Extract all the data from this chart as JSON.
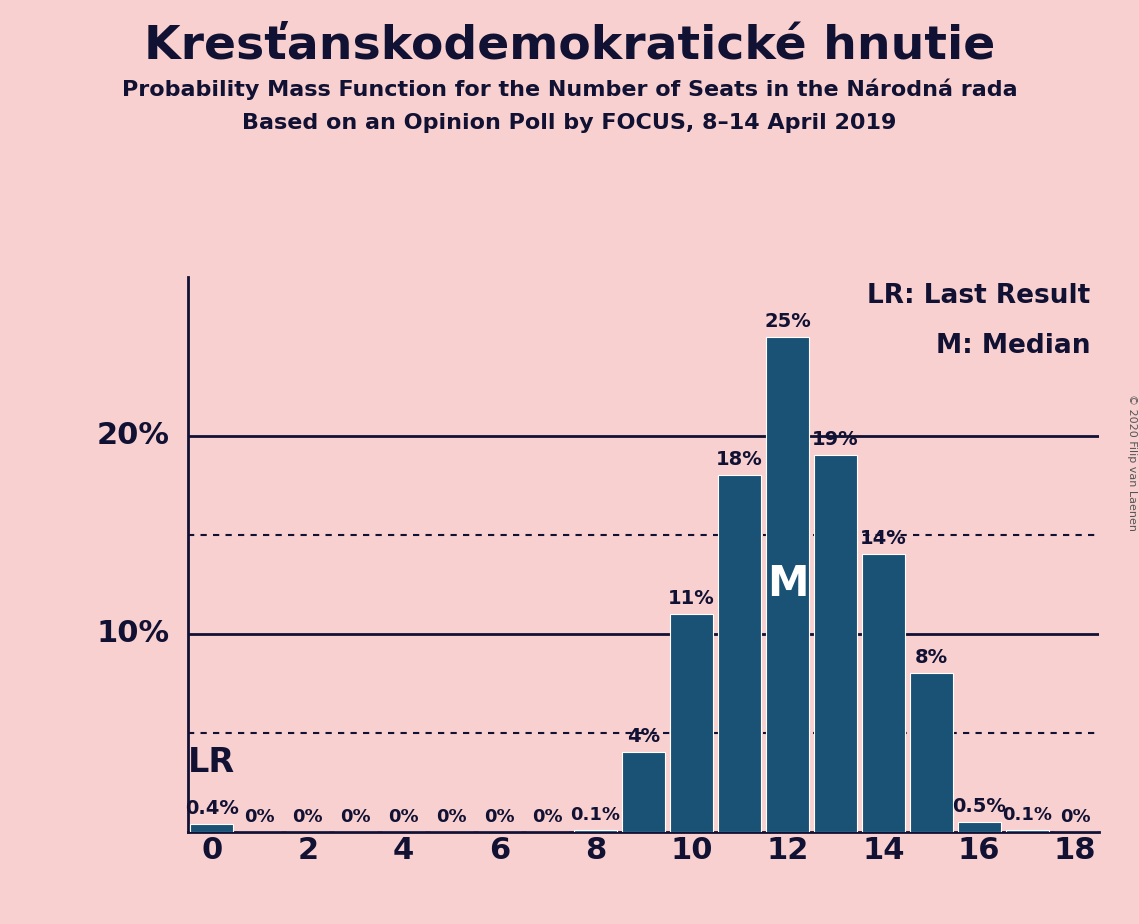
{
  "title": "Kresťanskodemokratické hnutie",
  "subtitle1": "Probability Mass Function for the Number of Seats in the Národná rada",
  "subtitle2": "Based on an Opinion Poll by FOCUS, 8–14 April 2019",
  "copyright": "© 2020 Filip van Laenen",
  "seats": [
    0,
    1,
    2,
    3,
    4,
    5,
    6,
    7,
    8,
    9,
    10,
    11,
    12,
    13,
    14,
    15,
    16,
    17,
    18
  ],
  "probabilities": [
    0.004,
    0.0,
    0.0,
    0.0,
    0.0,
    0.0,
    0.0,
    0.0,
    0.001,
    0.04,
    0.11,
    0.18,
    0.25,
    0.19,
    0.14,
    0.08,
    0.005,
    0.001,
    0.0
  ],
  "bar_color": "#1a5276",
  "background_color": "#f9d0d0",
  "text_color": "#111133",
  "median_seat": 12,
  "lr_seat": 0,
  "dotted_line_1": 0.05,
  "dotted_line_2": 0.15,
  "solid_lines": [
    0.1,
    0.2
  ],
  "xlim": [
    -0.5,
    18.5
  ],
  "ylim": [
    0,
    0.28
  ],
  "bar_labels": {
    "0": "0.4%",
    "1": "0%",
    "2": "0%",
    "3": "0%",
    "4": "0%",
    "5": "0%",
    "6": "0%",
    "7": "0%",
    "8": "0.1%",
    "9": "4%",
    "10": "11%",
    "11": "18%",
    "12": "25%",
    "13": "19%",
    "14": "14%",
    "15": "8%",
    "16": "0.5%",
    "17": "0.1%",
    "18": "0%"
  },
  "title_fontsize": 34,
  "subtitle_fontsize": 16,
  "ytick_fontsize": 22,
  "xtick_fontsize": 22,
  "bar_label_fontsize": 14,
  "bar_label_small_fontsize": 13,
  "legend_fontsize": 19,
  "lr_fontsize": 24,
  "median_label_fontsize": 30,
  "copyright_fontsize": 8
}
